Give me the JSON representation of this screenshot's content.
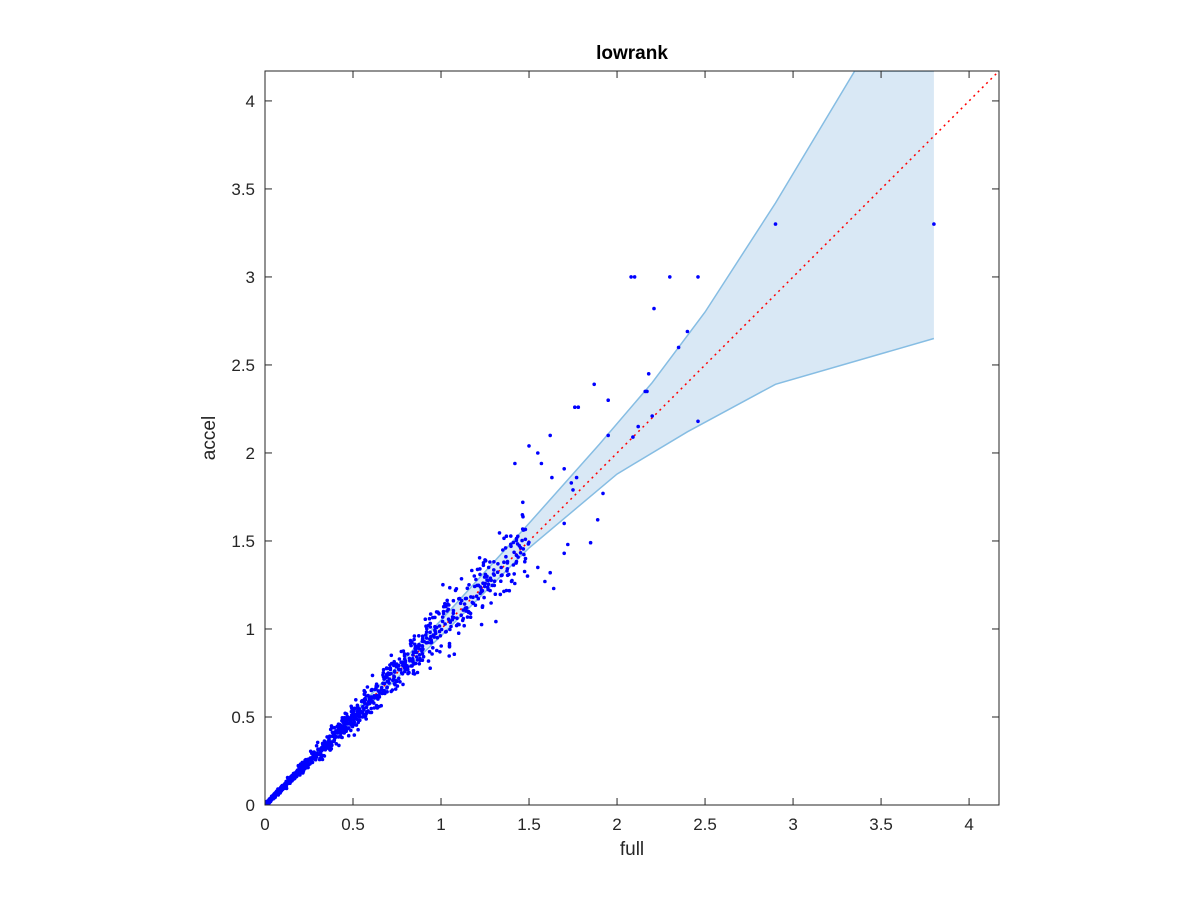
{
  "chart_data": {
    "type": "scatter",
    "title": "lowrank",
    "xlabel": "full",
    "ylabel": "accel",
    "xlim": [
      0,
      4.17
    ],
    "ylim": [
      0,
      4.17
    ],
    "grid": false,
    "legend": "none",
    "x_ticks": [
      0,
      0.5,
      1,
      1.5,
      2,
      2.5,
      3,
      3.5,
      4
    ],
    "x_tick_labels": [
      "0",
      "0.5",
      "1",
      "1.5",
      "2",
      "2.5",
      "3",
      "3.5",
      "4"
    ],
    "y_ticks": [
      0,
      0.5,
      1,
      1.5,
      2,
      2.5,
      3,
      3.5,
      4
    ],
    "y_tick_labels": [
      "0",
      "0.5",
      "1",
      "1.5",
      "2",
      "2.5",
      "3",
      "3.5",
      "4"
    ],
    "colors": {
      "points": "#0000ff",
      "band_fill": "#d9e8f5",
      "band_edge": "#86bde3",
      "reference_line": "#ff0000",
      "axes": "#262626"
    },
    "reference_line": {
      "style": "dotted",
      "points": [
        [
          0,
          0
        ],
        [
          4.17,
          4.17
        ]
      ]
    },
    "band": {
      "upper": [
        [
          0,
          0
        ],
        [
          0.5,
          0.52
        ],
        [
          1,
          1.05
        ],
        [
          1.5,
          1.6
        ],
        [
          1.9,
          2.05
        ],
        [
          2.2,
          2.4
        ],
        [
          2.5,
          2.8
        ],
        [
          2.9,
          3.42
        ],
        [
          3.35,
          4.17
        ],
        [
          3.8,
          4.17
        ]
      ],
      "lower": [
        [
          0,
          0
        ],
        [
          0.5,
          0.48
        ],
        [
          1,
          0.96
        ],
        [
          1.5,
          1.46
        ],
        [
          2,
          1.88
        ],
        [
          2.4,
          2.12
        ],
        [
          2.9,
          2.39
        ],
        [
          3.8,
          2.65
        ]
      ]
    },
    "highlight_points": [
      [
        2.08,
        3.0
      ],
      [
        2.1,
        3.0
      ],
      [
        2.3,
        3.0
      ],
      [
        2.46,
        3.0
      ],
      [
        2.21,
        2.82
      ],
      [
        2.4,
        2.69
      ],
      [
        2.35,
        2.6
      ],
      [
        2.18,
        2.45
      ],
      [
        1.87,
        2.39
      ],
      [
        1.95,
        2.3
      ],
      [
        1.76,
        2.26
      ],
      [
        1.78,
        2.26
      ],
      [
        2.16,
        2.35
      ],
      [
        2.17,
        2.35
      ],
      [
        2.2,
        2.21
      ],
      [
        2.46,
        2.18
      ],
      [
        2.09,
        2.09
      ],
      [
        2.12,
        2.15
      ],
      [
        1.95,
        2.1
      ],
      [
        1.62,
        2.1
      ],
      [
        1.5,
        2.04
      ],
      [
        1.55,
        2.0
      ],
      [
        1.42,
        1.94
      ],
      [
        1.57,
        1.94
      ],
      [
        1.7,
        1.91
      ],
      [
        1.77,
        1.86
      ],
      [
        1.63,
        1.86
      ],
      [
        1.74,
        1.83
      ],
      [
        1.89,
        1.62
      ],
      [
        1.7,
        1.6
      ],
      [
        1.92,
        1.77
      ],
      [
        1.75,
        1.79
      ],
      [
        1.85,
        1.49
      ],
      [
        1.72,
        1.48
      ],
      [
        1.7,
        1.43
      ],
      [
        1.62,
        1.32
      ],
      [
        1.59,
        1.27
      ],
      [
        1.64,
        1.23
      ],
      [
        1.55,
        1.35
      ],
      [
        1.48,
        1.4
      ],
      [
        2.9,
        3.3
      ],
      [
        3.8,
        3.3
      ]
    ],
    "scatter_generator": {
      "count": 1150,
      "x_max": 1.5,
      "y_equals_x_with_spread": 0.06
    }
  }
}
